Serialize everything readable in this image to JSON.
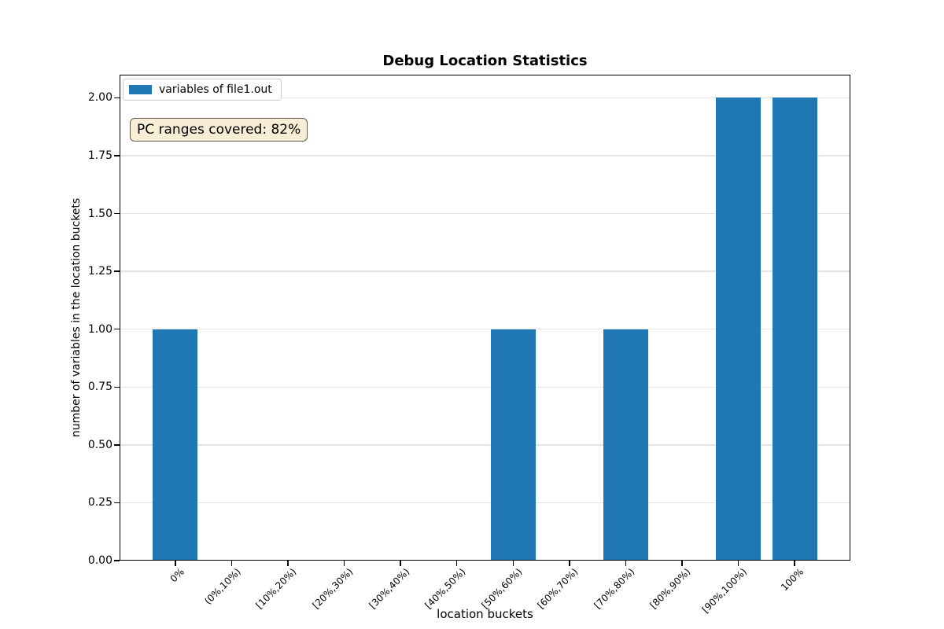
{
  "chart_data": {
    "type": "bar",
    "title": "Debug Location Statistics",
    "xlabel": "location buckets",
    "ylabel": "number of variables in the location buckets",
    "categories": [
      "0%",
      "(0%,10%)",
      "[10%,20%)",
      "[20%,30%)",
      "[30%,40%)",
      "[40%,50%)",
      "[50%,60%)",
      "[60%,70%)",
      "[70%,80%)",
      "[80%,90%)",
      "[90%,100%)",
      "100%"
    ],
    "series": [
      {
        "name": "variables of file1.out",
        "values": [
          1,
          0,
          0,
          0,
          0,
          0,
          1,
          0,
          1,
          0,
          2,
          2
        ]
      }
    ],
    "ylim": [
      0,
      2.1
    ],
    "ytick_values": [
      0,
      0.25,
      0.5,
      0.75,
      1.0,
      1.25,
      1.5,
      1.75,
      2.0
    ],
    "ytick_labels": [
      "0.00",
      "0.25",
      "0.50",
      "0.75",
      "1.00",
      "1.25",
      "1.50",
      "1.75",
      "2.00"
    ],
    "x_tick_rotation_deg": 45,
    "grid": "horizontal-only",
    "legend_position": "upper-left",
    "annotations": [
      "PC ranges covered: 82%"
    ],
    "colors": {
      "bar": "#1f77b4",
      "grid": "#e3e3e3",
      "spine": "#000000",
      "annotation_bg": "#f8eed6",
      "annotation_border": "#605c52",
      "legend_border": "#cccccc"
    }
  }
}
